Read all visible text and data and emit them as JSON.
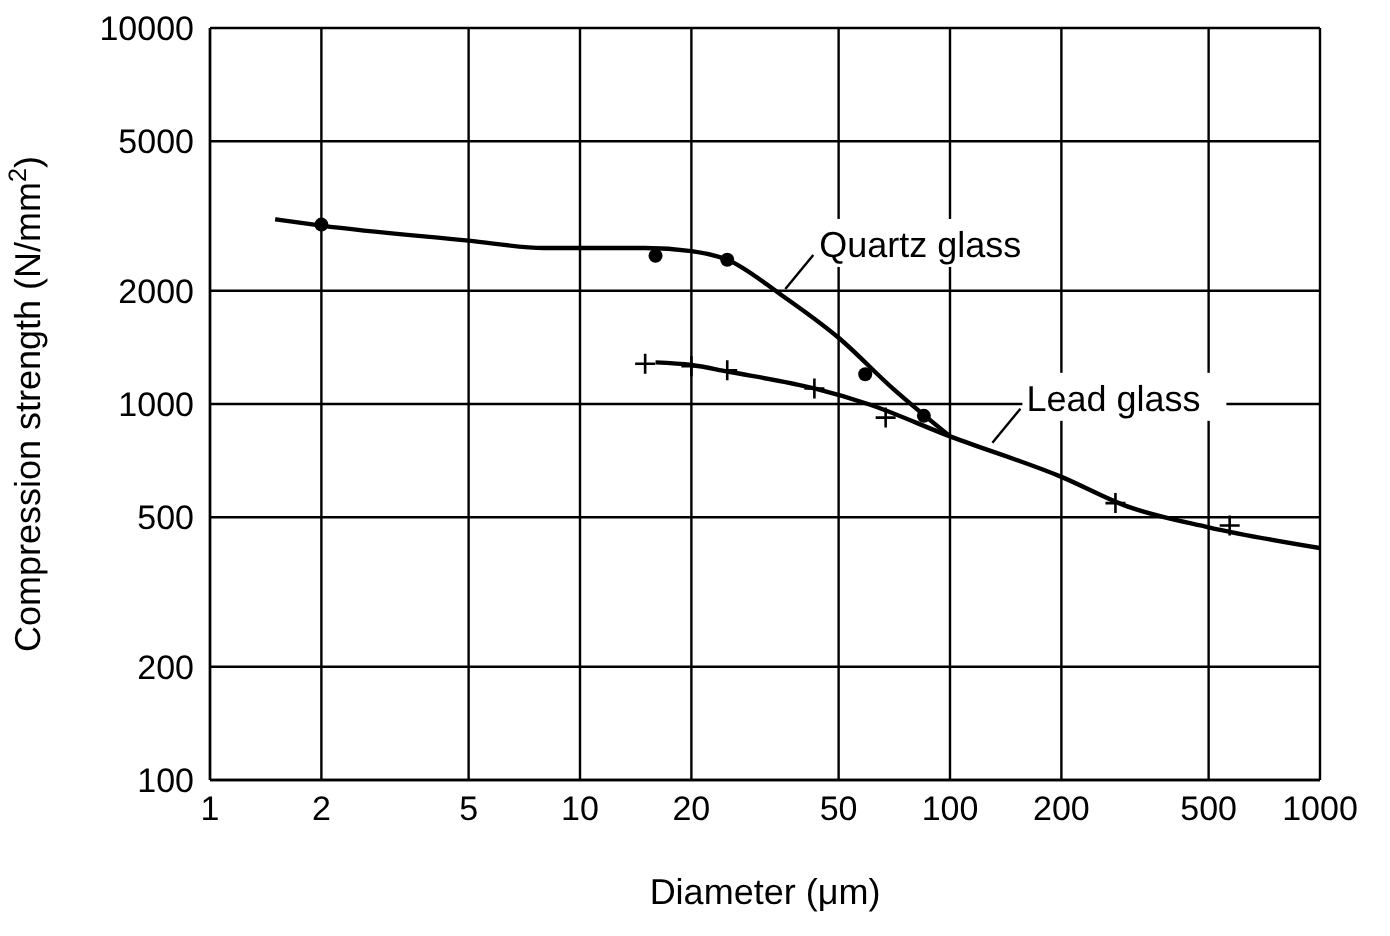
{
  "chart_data": {
    "type": "line",
    "xlabel": "Diameter (μm)",
    "ylabel": "Compression strength (N/mm$^{2}$)",
    "log": "xy",
    "xlim": [
      1,
      1000
    ],
    "xticks": [
      1,
      2,
      5,
      10,
      20,
      50,
      100,
      200,
      500,
      1000
    ],
    "ylim": [
      100,
      10000
    ],
    "yticks": [
      100,
      200,
      500,
      1000,
      2000,
      5000,
      10000
    ],
    "grid": true,
    "series": [
      {
        "color": "#000000",
        "marker": "none",
        "x": [
          1.5,
          2,
          5,
          8,
          15,
          20,
          25,
          35,
          50,
          70,
          100
        ],
        "values": [
          3100,
          2980,
          2720,
          2600,
          2600,
          2550,
          2420,
          1950,
          1500,
          1100,
          820
        ]
      },
      {
        "color": "#000000",
        "marker": "none",
        "x": [
          16,
          20,
          25,
          43,
          60,
          100,
          200,
          300,
          500,
          1000
        ],
        "values": [
          1290,
          1270,
          1220,
          1100,
          1000,
          820,
          640,
          535,
          470,
          414
        ]
      },
      {
        "type": "scatter",
        "color": "#000000",
        "marker": "circle",
        "x": [
          2,
          16,
          25,
          59,
          85
        ],
        "values": [
          3000,
          2480,
          2420,
          1200,
          930
        ]
      },
      {
        "type": "scatter",
        "color": "#000000",
        "marker": "cross",
        "x": [
          15,
          20,
          25,
          43,
          67,
          280,
          570
        ],
        "values": [
          1280,
          1260,
          1230,
          1100,
          920,
          545,
          475
        ]
      }
    ],
    "annotations": [
      {
        "text": "Quartz glass",
        "x": 35,
        "y": 1950
      },
      {
        "text": "Lead glass",
        "x": 127,
        "y": 760
      }
    ]
  }
}
